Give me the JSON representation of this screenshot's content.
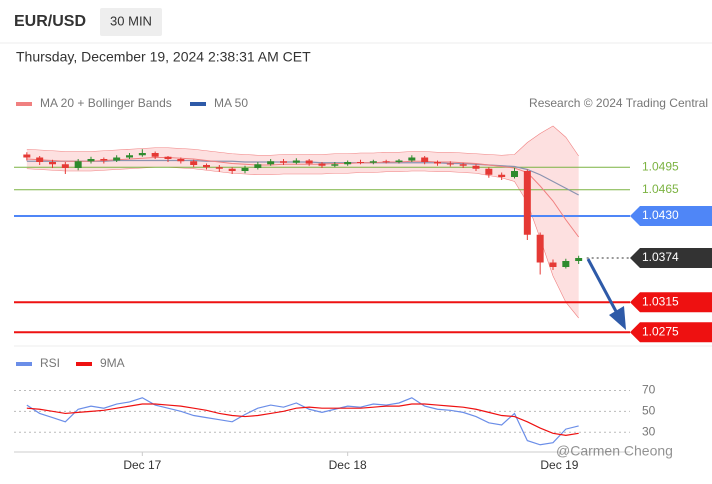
{
  "header": {
    "symbol": "EUR/USD",
    "timeframe": "30 MIN",
    "datetime": "Thursday, December 19, 2024 2:38:31 AM CET"
  },
  "chart_data": [
    {
      "type": "candlestick",
      "credit": "Research © 2024 Trading Central",
      "up_color": "#2e8b2e",
      "down_color": "#e53935",
      "xlim": [
        -1,
        47
      ],
      "ylim": [
        1.0258,
        1.0558
      ],
      "ohlc": [
        [
          1.0512,
          1.0515,
          1.0504,
          1.0508
        ],
        [
          1.0508,
          1.051,
          1.0498,
          1.0502
        ],
        [
          1.0502,
          1.0505,
          1.0494,
          1.0499
        ],
        [
          1.0499,
          1.0502,
          1.0486,
          1.0494
        ],
        [
          1.0494,
          1.0506,
          1.0491,
          1.0503
        ],
        [
          1.0503,
          1.0509,
          1.05,
          1.0506
        ],
        [
          1.0506,
          1.0508,
          1.05,
          1.0504
        ],
        [
          1.0504,
          1.0511,
          1.0502,
          1.0508
        ],
        [
          1.0508,
          1.0514,
          1.0506,
          1.0511
        ],
        [
          1.0511,
          1.0519,
          1.0509,
          1.0514
        ],
        [
          1.0514,
          1.0516,
          1.0506,
          1.0509
        ],
        [
          1.0509,
          1.051,
          1.0502,
          1.0506
        ],
        [
          1.0506,
          1.0508,
          1.05,
          1.0503
        ],
        [
          1.0503,
          1.0505,
          1.0495,
          1.0498
        ],
        [
          1.0498,
          1.05,
          1.0492,
          1.0495
        ],
        [
          1.0495,
          1.0498,
          1.0489,
          1.0493
        ],
        [
          1.0493,
          1.0495,
          1.0486,
          1.049
        ],
        [
          1.049,
          1.0497,
          1.0487,
          1.0494
        ],
        [
          1.0494,
          1.0502,
          1.0492,
          1.0499
        ],
        [
          1.0499,
          1.0506,
          1.0497,
          1.0503
        ],
        [
          1.0503,
          1.0506,
          1.0498,
          1.0501
        ],
        [
          1.0501,
          1.0507,
          1.0499,
          1.0504
        ],
        [
          1.0504,
          1.0506,
          1.0497,
          1.05
        ],
        [
          1.05,
          1.0502,
          1.0494,
          1.0497
        ],
        [
          1.0497,
          1.0502,
          1.0495,
          1.0499
        ],
        [
          1.0499,
          1.0504,
          1.0497,
          1.0502
        ],
        [
          1.0502,
          1.0505,
          1.0499,
          1.0501
        ],
        [
          1.0501,
          1.0505,
          1.0499,
          1.0503
        ],
        [
          1.0503,
          1.0505,
          1.05,
          1.0502
        ],
        [
          1.0502,
          1.0506,
          1.05,
          1.0504
        ],
        [
          1.0504,
          1.0511,
          1.0502,
          1.0508
        ],
        [
          1.0508,
          1.051,
          1.0499,
          1.0502
        ],
        [
          1.0502,
          1.0504,
          1.0497,
          1.05
        ],
        [
          1.05,
          1.0503,
          1.0496,
          1.0499
        ],
        [
          1.0499,
          1.0501,
          1.0494,
          1.0497
        ],
        [
          1.0497,
          1.0499,
          1.049,
          1.0493
        ],
        [
          1.0493,
          1.0495,
          1.0481,
          1.0485
        ],
        [
          1.0485,
          1.0488,
          1.0478,
          1.0482
        ],
        [
          1.0482,
          1.0494,
          1.048,
          1.049
        ],
        [
          1.049,
          1.0492,
          1.0398,
          1.0405
        ],
        [
          1.0405,
          1.0408,
          1.0352,
          1.0368
        ],
        [
          1.0368,
          1.0372,
          1.0358,
          1.0362
        ],
        [
          1.0362,
          1.0373,
          1.036,
          1.037
        ],
        [
          1.037,
          1.0377,
          1.0366,
          1.0374
        ]
      ],
      "series": [
        {
          "name": "MA 20 + Bollinger Bands",
          "color": "#f08080",
          "band_color": "#fde0e0",
          "values": [
            1.0506,
            1.0505,
            1.0504,
            1.0503,
            1.0503,
            1.0503,
            1.0504,
            1.0505,
            1.0506,
            1.0507,
            1.0508,
            1.0508,
            1.0507,
            1.0506,
            1.0504,
            1.0502,
            1.05,
            1.0499,
            1.0498,
            1.0498,
            1.0499,
            1.0499,
            1.0499,
            1.0499,
            1.05,
            1.05,
            1.0501,
            1.0501,
            1.0502,
            1.0502,
            1.0503,
            1.0503,
            1.0502,
            1.0502,
            1.0501,
            1.05,
            1.0498,
            1.0496,
            1.0494,
            1.0488,
            1.047,
            1.045,
            1.0425,
            1.0402
          ],
          "upper": [
            1.0519,
            1.0518,
            1.0517,
            1.0516,
            1.0516,
            1.0516,
            1.0517,
            1.0518,
            1.0519,
            1.052,
            1.0521,
            1.0521,
            1.052,
            1.0519,
            1.0517,
            1.0515,
            1.0513,
            1.0512,
            1.0511,
            1.0511,
            1.0512,
            1.0512,
            1.0512,
            1.0512,
            1.0513,
            1.0513,
            1.0514,
            1.0514,
            1.0515,
            1.0515,
            1.0516,
            1.0516,
            1.0515,
            1.0515,
            1.0514,
            1.0513,
            1.0512,
            1.0511,
            1.0512,
            1.0528,
            1.054,
            1.055,
            1.0535,
            1.051
          ],
          "lower": [
            1.0493,
            1.0492,
            1.0491,
            1.049,
            1.049,
            1.049,
            1.0491,
            1.0492,
            1.0493,
            1.0494,
            1.0495,
            1.0495,
            1.0494,
            1.0493,
            1.0491,
            1.0489,
            1.0487,
            1.0486,
            1.0485,
            1.0485,
            1.0486,
            1.0486,
            1.0486,
            1.0486,
            1.0487,
            1.0487,
            1.0488,
            1.0488,
            1.0489,
            1.0489,
            1.049,
            1.049,
            1.0489,
            1.0489,
            1.0488,
            1.0487,
            1.0484,
            1.0481,
            1.0476,
            1.0448,
            1.04,
            1.035,
            1.0315,
            1.0294
          ]
        },
        {
          "name": "MA 50",
          "color": "#2e5aa8",
          "line_color": "#8a93b0",
          "values": [
            1.0503,
            1.0503,
            1.0503,
            1.0503,
            1.0503,
            1.0503,
            1.0503,
            1.0504,
            1.0504,
            1.0504,
            1.0504,
            1.0504,
            1.0504,
            1.0504,
            1.0503,
            1.0503,
            1.0503,
            1.0502,
            1.0502,
            1.0502,
            1.0502,
            1.0502,
            1.0502,
            1.0501,
            1.0501,
            1.0501,
            1.0501,
            1.0501,
            1.0501,
            1.0501,
            1.0501,
            1.0501,
            1.0501,
            1.05,
            1.05,
            1.0499,
            1.0498,
            1.0497,
            1.0496,
            1.0492,
            1.0485,
            1.0476,
            1.0467,
            1.0458
          ]
        }
      ],
      "levels": [
        {
          "value": 1.0495,
          "color": "#7cb342",
          "boxed": false
        },
        {
          "value": 1.0465,
          "color": "#7cb342",
          "boxed": false
        },
        {
          "value": 1.043,
          "label": "1.0430",
          "color": "#4f86f7",
          "boxed": true
        },
        {
          "value": 1.0374,
          "color": "#333333",
          "boxed": true,
          "style": "dotted"
        },
        {
          "value": 1.0315,
          "color": "#ee1111",
          "boxed": true
        },
        {
          "value": 1.0275,
          "color": "#ee1111",
          "boxed": true
        }
      ]
    },
    {
      "type": "line",
      "xlim": [
        -1,
        47
      ],
      "ylim": [
        13,
        80
      ],
      "yticks": [
        70,
        50,
        30
      ],
      "xticks": [
        {
          "value": 9,
          "label": "Dec 17"
        },
        {
          "value": 25,
          "label": "Dec 18"
        },
        {
          "value": 41.5,
          "label": "Dec 19"
        }
      ],
      "series": [
        {
          "name": "RSI",
          "color": "#6b8ee8",
          "values": [
            56,
            48,
            44,
            40,
            52,
            55,
            53,
            57,
            59,
            63,
            56,
            53,
            50,
            46,
            44,
            42,
            40,
            47,
            53,
            56,
            54,
            58,
            52,
            49,
            52,
            55,
            54,
            57,
            56,
            58,
            63,
            55,
            52,
            51,
            49,
            45,
            39,
            37,
            48,
            22,
            18,
            20,
            33,
            36
          ]
        },
        {
          "name": "9MA",
          "color": "#ee1111",
          "values": [
            53,
            52,
            50,
            48,
            49,
            50,
            51,
            53,
            55,
            57,
            57,
            56,
            55,
            53,
            51,
            48,
            46,
            45,
            46,
            48,
            50,
            53,
            54,
            53,
            53,
            53,
            53,
            54,
            55,
            55,
            57,
            57,
            56,
            55,
            54,
            52,
            49,
            46,
            45,
            40,
            34,
            29,
            27,
            29
          ]
        }
      ]
    }
  ],
  "watermark": "@Carmen Cheong"
}
